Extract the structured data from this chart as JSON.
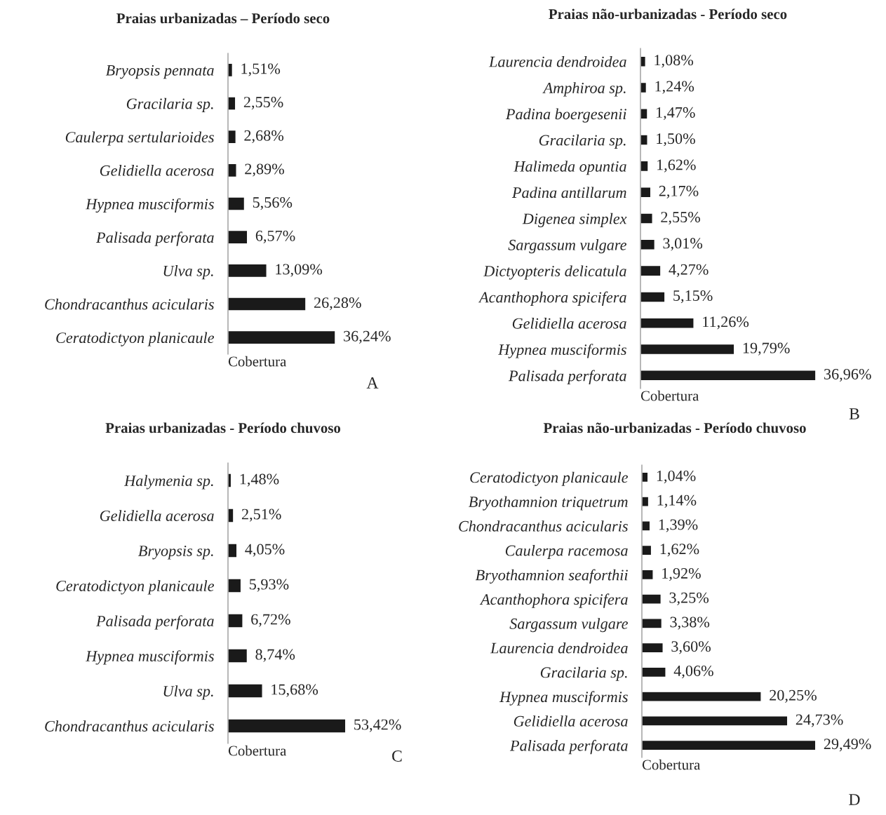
{
  "chart_data": [
    {
      "type": "bar",
      "orientation": "horizontal",
      "title": "Praias urbanizadas – Período seco",
      "xlabel": "Cobertura",
      "color": "#1a1a1a",
      "annotations": [
        "A"
      ],
      "categories": [
        "Bryopsis pennata",
        "Gracilaria sp.",
        "Caulerpa sertularioides",
        "Gelidiella acerosa",
        "Hypnea musciformis",
        "Palisada perforata",
        "Ulva sp.",
        "Chondracanthus acicularis",
        "Ceratodictyon planicaule"
      ],
      "values": [
        1.51,
        2.55,
        2.68,
        2.89,
        5.56,
        6.57,
        13.09,
        26.28,
        36.24
      ],
      "value_labels": [
        "1,51%",
        "2,55%",
        "2,68%",
        "2,89%",
        "5,56%",
        "6,57%",
        "13,09%",
        "26,28%",
        "36,24%"
      ]
    },
    {
      "type": "bar",
      "orientation": "horizontal",
      "title": "Praias não-urbanizadas - Período seco",
      "xlabel": "Cobertura",
      "color": "#1a1a1a",
      "annotations": [
        "B"
      ],
      "categories": [
        "Laurencia dendroidea",
        "Amphiroa sp.",
        "Padina boergesenii",
        "Gracilaria sp.",
        "Halimeda opuntia",
        "Padina antillarum",
        "Digenea simplex",
        "Sargassum vulgare",
        "Dictyopteris delicatula",
        "Acanthophora spicifera",
        "Gelidiella acerosa",
        "Hypnea musciformis",
        "Palisada perforata"
      ],
      "values": [
        1.08,
        1.24,
        1.47,
        1.5,
        1.62,
        2.17,
        2.55,
        3.01,
        4.27,
        5.15,
        11.26,
        19.79,
        36.96
      ],
      "value_labels": [
        "1,08%",
        "1,24%",
        "1,47%",
        "1,50%",
        "1,62%",
        "2,17%",
        "2,55%",
        "3,01%",
        "4,27%",
        "5,15%",
        "11,26%",
        "19,79%",
        "36,96%"
      ]
    },
    {
      "type": "bar",
      "orientation": "horizontal",
      "title": "Praias urbanizadas - Período chuvoso",
      "xlabel": "Cobertura",
      "color": "#1a1a1a",
      "annotations": [
        "C"
      ],
      "categories": [
        "Halymenia sp.",
        "Gelidiella acerosa",
        "Bryopsis sp.",
        "Ceratodictyon planicaule",
        "Palisada perforata",
        "Hypnea musciformis",
        "Ulva sp.",
        "Chondracanthus acicularis"
      ],
      "values": [
        1.48,
        2.51,
        4.05,
        5.93,
        6.72,
        8.74,
        15.68,
        53.42
      ],
      "value_labels": [
        "1,48%",
        "2,51%",
        "4,05%",
        "5,93%",
        "6,72%",
        "8,74%",
        "15,68%",
        "53,42%"
      ]
    },
    {
      "type": "bar",
      "orientation": "horizontal",
      "title": "Praias não-urbanizadas - Período chuvoso",
      "xlabel": "Cobertura",
      "color": "#1a1a1a",
      "annotations": [
        "D"
      ],
      "categories": [
        "Ceratodictyon planicaule",
        "Bryothamnion triquetrum",
        "Chondracanthus acicularis",
        "Caulerpa racemosa",
        "Bryothamnion seaforthii",
        "Acanthophora spicifera",
        "Sargassum vulgare",
        "Laurencia dendroidea",
        "Gracilaria sp.",
        "Hypnea musciformis",
        "Gelidiella acerosa",
        "Palisada perforata"
      ],
      "values": [
        1.04,
        1.14,
        1.39,
        1.62,
        1.92,
        3.25,
        3.38,
        3.6,
        4.06,
        20.25,
        24.73,
        29.49
      ],
      "value_labels": [
        "1,04%",
        "1,14%",
        "1,39%",
        "1,62%",
        "1,92%",
        "3,25%",
        "3,38%",
        "3,60%",
        "4,06%",
        "20,25%",
        "24,73%",
        "29,49%"
      ]
    }
  ]
}
